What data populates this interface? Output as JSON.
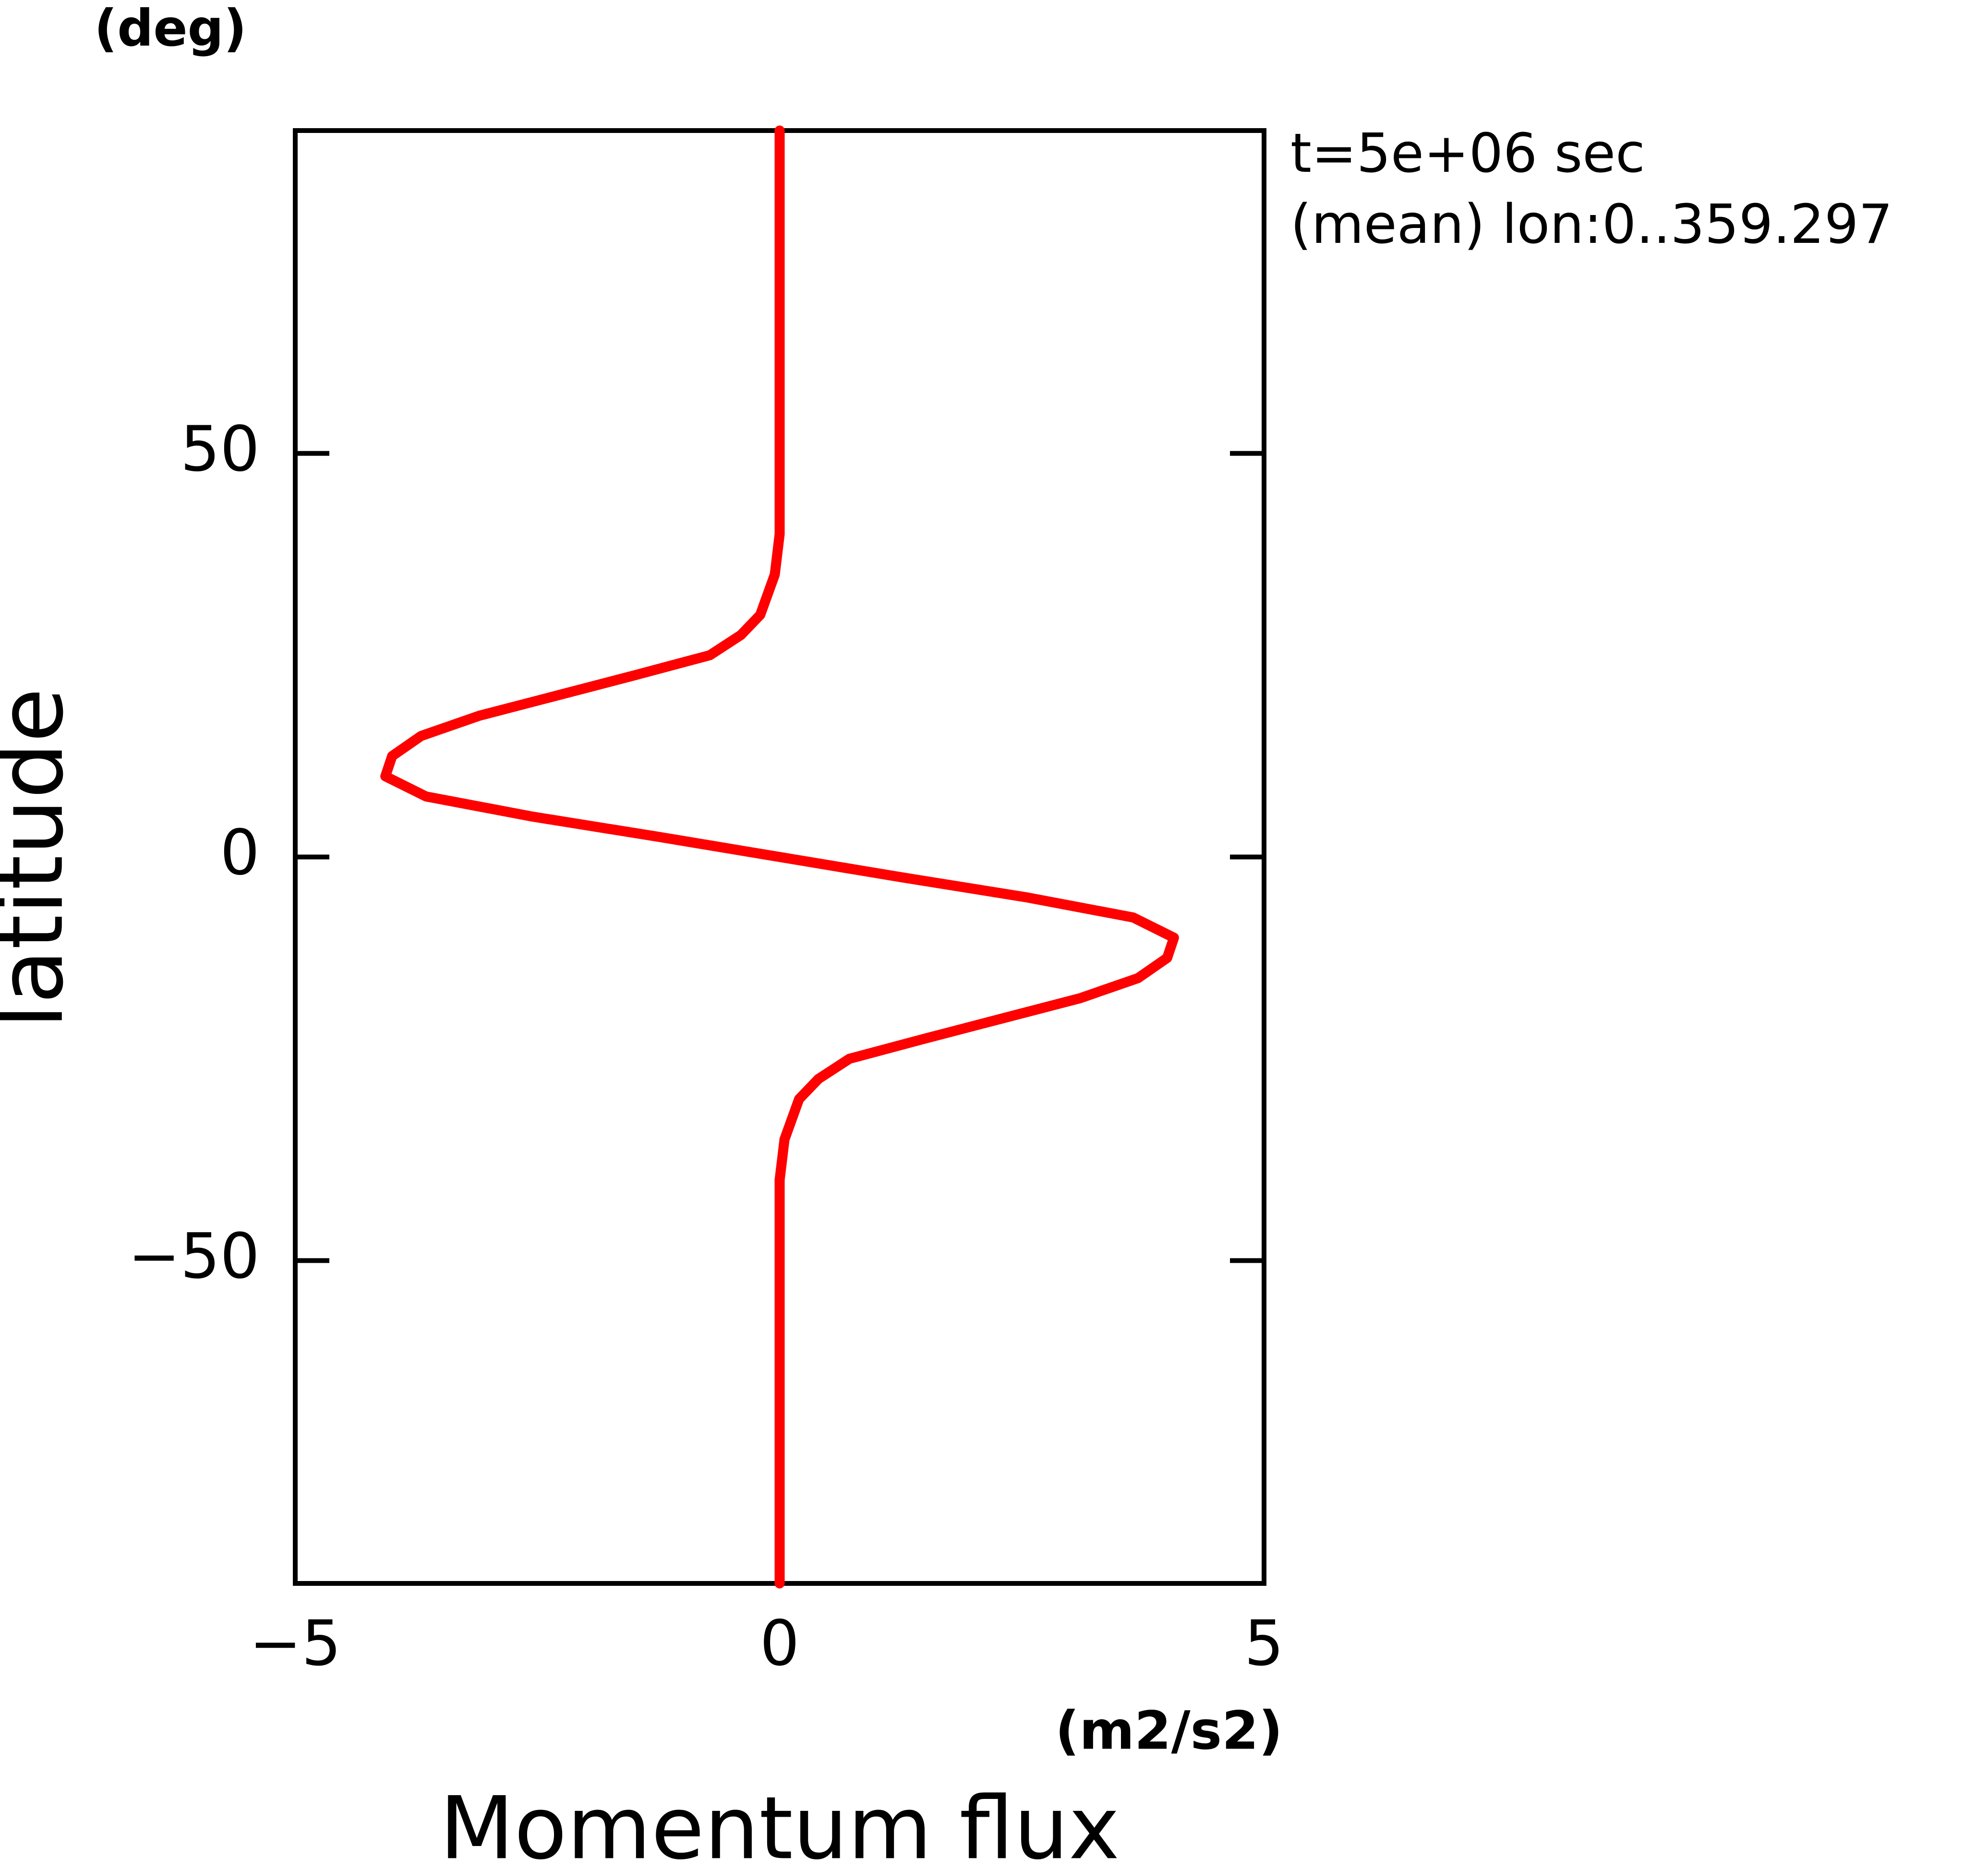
{
  "chart_data": {
    "type": "line",
    "y_unit": "(deg)",
    "y_label": "latitude",
    "x_unit": "(m2/s2)",
    "x_label": "Momentum flux",
    "annotations": [
      "t=5e+06 sec",
      "(mean) lon:0..359.297"
    ],
    "y": [
      90,
      80,
      70,
      60,
      50,
      40,
      35,
      30,
      27.5,
      25,
      22.5,
      20,
      17.5,
      15,
      12.5,
      10,
      7.5,
      5,
      2.5,
      0,
      -2.5,
      -5,
      -7.5,
      -10,
      -12.5,
      -15,
      -17.5,
      -20,
      -22.5,
      -25,
      -27.5,
      -30,
      -35,
      -40,
      -50,
      -60,
      -70,
      -80,
      -90
    ],
    "series": [
      {
        "color": "#ff0000",
        "values": [
          0,
          0,
          0,
          0,
          0,
          0,
          -0.05,
          -0.2,
          -0.4,
          -0.72,
          -1.5,
          -2.3,
          -3.1,
          -3.7,
          -4.0,
          -4.07,
          -3.65,
          -2.55,
          -1.25,
          0,
          1.25,
          2.55,
          3.65,
          4.07,
          4.0,
          3.7,
          3.1,
          2.3,
          1.5,
          0.72,
          0.4,
          0.2,
          0.05,
          0,
          0,
          0,
          0,
          0,
          0
        ]
      }
    ],
    "xlim": [
      -5,
      5
    ],
    "xticks": [
      {
        "value": -5,
        "label": "−5"
      },
      0,
      5
    ],
    "ylim": [
      -90,
      90
    ],
    "yticks": [
      {
        "value": -50,
        "label": "−50"
      },
      0,
      50
    ]
  }
}
